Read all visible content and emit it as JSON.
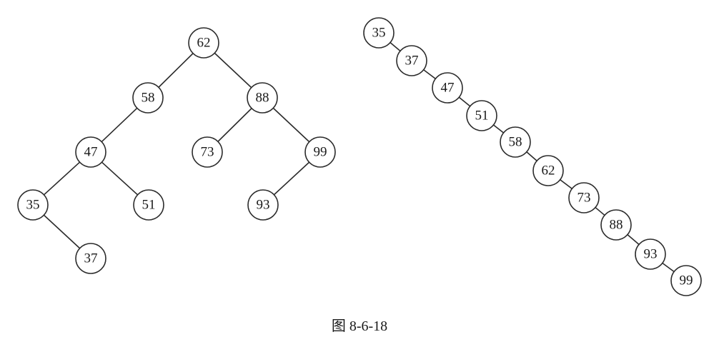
{
  "caption": "图 8-6-18",
  "trees": [
    {
      "name": "balanced-bst",
      "nodes": [
        "62",
        "58",
        "88",
        "47",
        "73",
        "99",
        "35",
        "51",
        "93",
        "37"
      ],
      "edges": [
        [
          "62",
          "58"
        ],
        [
          "62",
          "88"
        ],
        [
          "58",
          "47"
        ],
        [
          "88",
          "73"
        ],
        [
          "88",
          "99"
        ],
        [
          "47",
          "35"
        ],
        [
          "47",
          "51"
        ],
        [
          "99",
          "93"
        ],
        [
          "35",
          "37"
        ]
      ]
    },
    {
      "name": "skewed-bst",
      "nodes": [
        "35",
        "37",
        "47",
        "51",
        "58",
        "62",
        "73",
        "88",
        "93",
        "99"
      ],
      "edges": [
        [
          "35",
          "37"
        ],
        [
          "37",
          "47"
        ],
        [
          "47",
          "51"
        ],
        [
          "51",
          "58"
        ],
        [
          "58",
          "62"
        ],
        [
          "62",
          "73"
        ],
        [
          "73",
          "88"
        ],
        [
          "88",
          "93"
        ],
        [
          "93",
          "99"
        ]
      ]
    }
  ]
}
